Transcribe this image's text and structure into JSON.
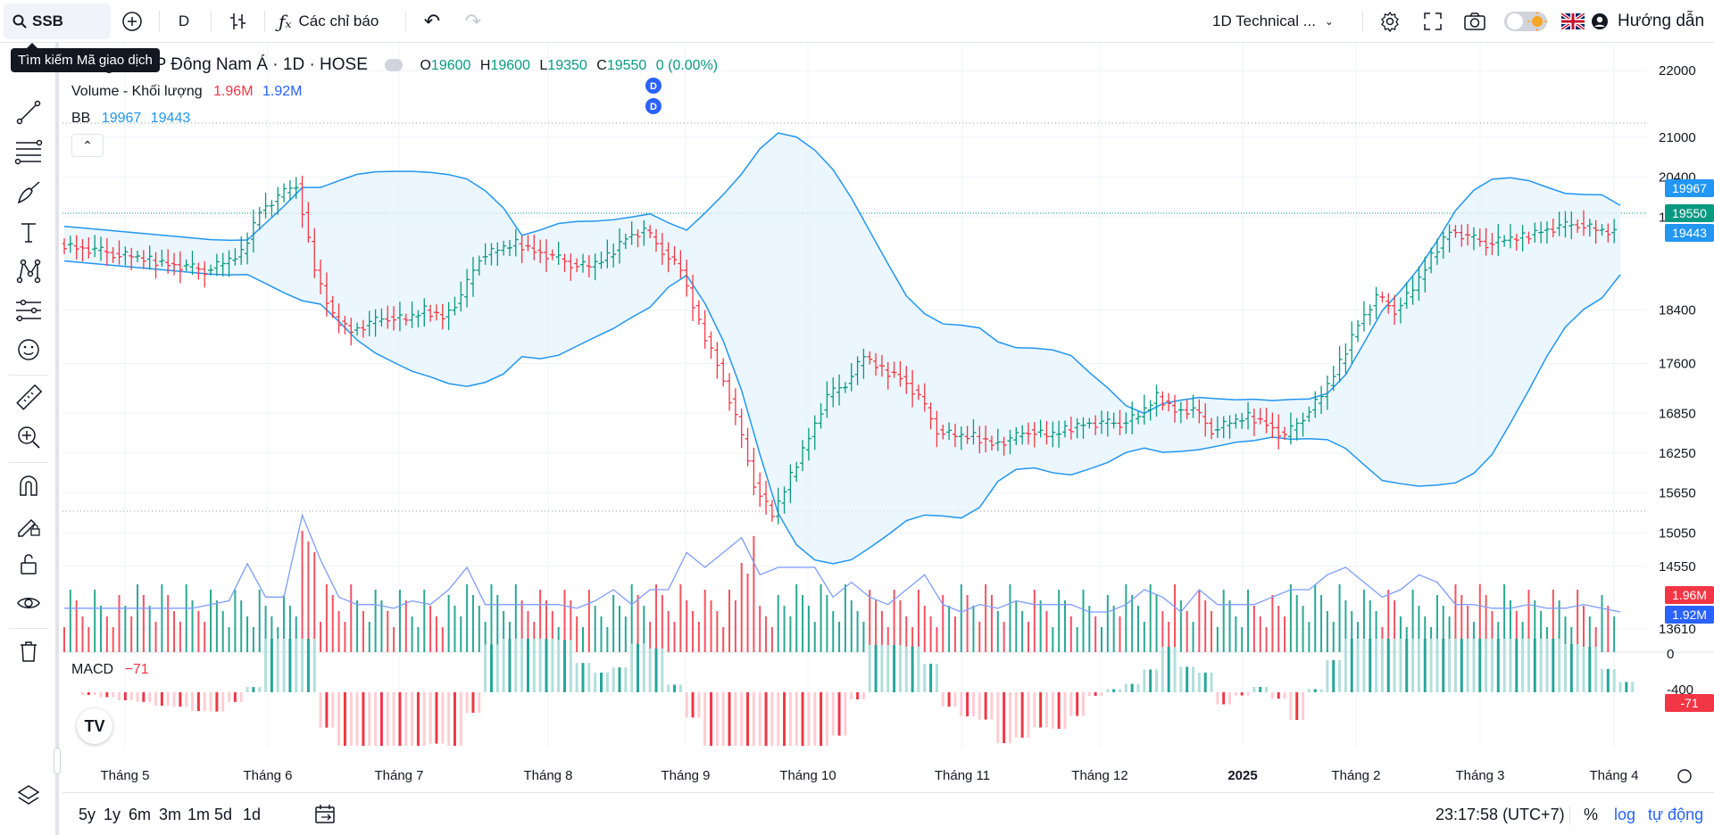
{
  "toolbar": {
    "symbol": "SSB",
    "symbol_tooltip": "Tìm kiếm Mã giao dịch",
    "interval": "D",
    "indicators_label": "Các chỉ báo",
    "layout_name": "1D Technical ...",
    "help_label": "Hướng dẫn"
  },
  "legend": {
    "title": "...àng TMCP Đông Nam Á · 1D · HOSE",
    "open_label": "O",
    "open": "19600",
    "high_label": "H",
    "high": "19600",
    "low_label": "L",
    "low": "19350",
    "close_label": "C",
    "close": "19550",
    "change": "0 (0.00%)",
    "volume_label": "Volume - Khối lượng",
    "volume_value": "1.96M",
    "volume_ma": "1.92M",
    "bb_label": "BB",
    "bb_upper": "19967",
    "bb_lower": "19443",
    "macd_label": "MACD",
    "macd_value": "−71"
  },
  "events": [
    "D",
    "D"
  ],
  "price_axis": {
    "ticks": [
      "22000",
      "21000",
      "20400",
      "19800",
      "18400",
      "17600",
      "16850",
      "16250",
      "15650",
      "15050",
      "14550",
      "13610"
    ],
    "tags": {
      "upper": "19967",
      "close": "19550",
      "lower": "19443",
      "volume": "1.96M",
      "volume_ma": "1.92M",
      "macd": "-71"
    }
  },
  "macd_axis": {
    "ticks": [
      "0",
      "-400"
    ]
  },
  "time_axis": {
    "labels": [
      "Tháng 5",
      "Tháng 6",
      "Tháng 7",
      "Tháng 8",
      "Tháng 9",
      "Tháng 10",
      "Tháng 11",
      "Tháng 12",
      "2025",
      "Tháng 2",
      "Tháng 3",
      "Tháng 4"
    ]
  },
  "bottom": {
    "ranges": [
      "5y",
      "1y",
      "6m",
      "3m",
      "1m",
      "5d",
      "1d"
    ],
    "clock": "23:17:58 (UTC+7)",
    "percent": "%",
    "log": "log",
    "auto": "tự động"
  },
  "colors": {
    "up": "#089981",
    "down": "#f23645",
    "bb": "#2196f3",
    "bb_fill": "#e3f2fd",
    "volume_ma": "#7e9cff",
    "accent": "#2962ff"
  },
  "chart_data": {
    "type": "ohlc",
    "interval": "1D",
    "exchange": "HOSE",
    "last": {
      "open": 19600,
      "high": 19600,
      "low": 19350,
      "close": 19550
    },
    "close_series_approx": [
      19400,
      19350,
      19300,
      19250,
      19200,
      19150,
      19100,
      19050,
      19000,
      19100,
      19250,
      19900,
      20100,
      20300,
      19000,
      18300,
      18100,
      18200,
      18300,
      18250,
      18400,
      18300,
      18600,
      19200,
      19300,
      19400,
      19300,
      19200,
      19100,
      19050,
      19200,
      19500,
      19600,
      19300,
      19000,
      18200,
      17600,
      16800,
      15800,
      15300,
      15900,
      16500,
      17100,
      17300,
      17700,
      17500,
      17400,
      17100,
      16600,
      16500,
      16500,
      16400,
      16450,
      16600,
      16500,
      16600,
      16700,
      16700,
      16700,
      16800,
      17100,
      16900,
      16900,
      16600,
      16700,
      16800,
      16700,
      16500,
      16800,
      17100,
      17600,
      18200,
      18600,
      18400,
      18700,
      19200,
      19600,
      19500,
      19400,
      19450,
      19500,
      19600,
      19650,
      19700,
      19600,
      19550
    ]
  }
}
